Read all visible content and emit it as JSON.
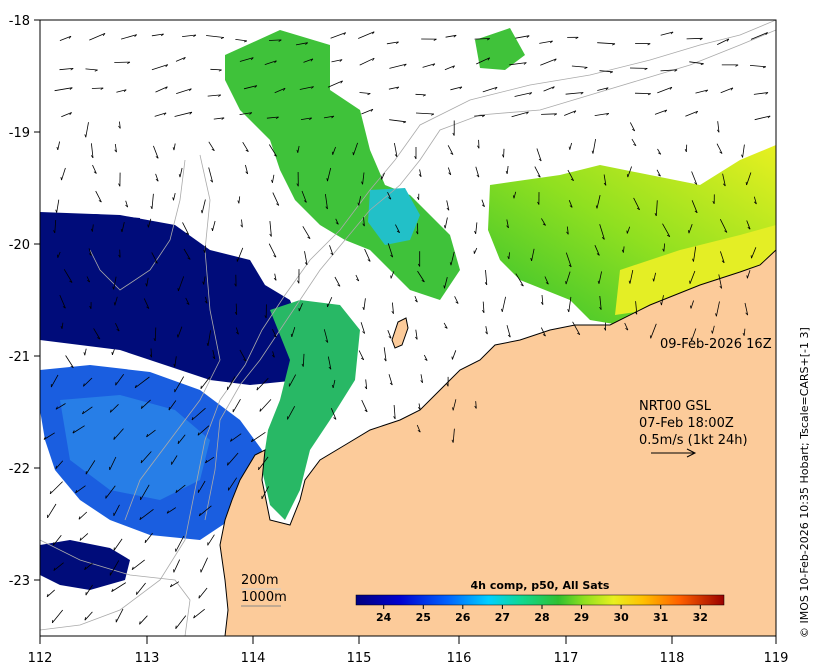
{
  "map": {
    "x_ticks": [
      "112",
      "113",
      "114",
      "115",
      "116",
      "117",
      "118",
      "119"
    ],
    "y_ticks": [
      "-18",
      "-19",
      "-20",
      "-21",
      "-22",
      "-23"
    ],
    "date_label": "09-Feb-2026 16Z",
    "wind_source": "NRT00 GSL",
    "wind_time": "07-Feb 18:00Z",
    "wind_scale": "0.5m/s (1kt 24h)",
    "depth_200": "200m",
    "depth_1000": "1000m",
    "credit": "© IMOS 10-Feb-2026 10:35 Hobart; Tscale=CARS+[-1 3]",
    "colors": {
      "land": "#fccb9a",
      "cloud": "#ffffff",
      "cold": "#000c7a",
      "arrow": "#000000",
      "contour": "#aaaaaa"
    }
  },
  "colorbar": {
    "title": "4h comp, p50, All Sats",
    "labels": [
      "24",
      "25",
      "26",
      "27",
      "28",
      "29",
      "30",
      "31",
      "32"
    ],
    "range": [
      23.3,
      32.6
    ]
  }
}
